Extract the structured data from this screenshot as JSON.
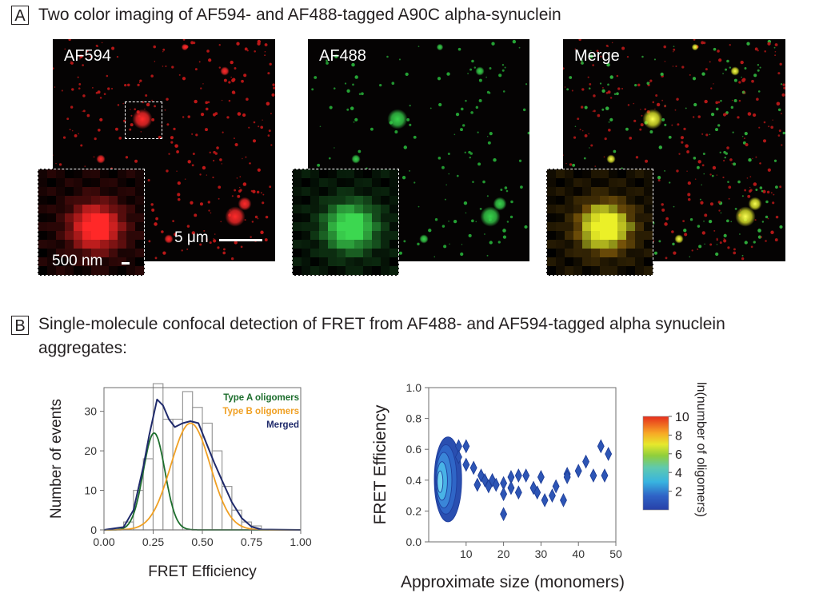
{
  "panel_a": {
    "letter": "A",
    "title": "Two color imaging of AF594- and AF488-tagged A90C alpha-synuclein",
    "images": [
      {
        "label": "AF594",
        "channel": "red"
      },
      {
        "label": "AF488",
        "channel": "green"
      },
      {
        "label": "Merge",
        "channel": "merge"
      }
    ],
    "scalebar_main": "5 μm",
    "scalebar_inset": "500 nm"
  },
  "panel_b": {
    "letter": "B",
    "title_line1": "Single-molecule confocal detection of FRET from AF488- and AF594-tagged alpha synuclein",
    "title_line2": "aggregates:"
  },
  "chart_data": [
    {
      "type": "bar",
      "xlabel": "FRET Efficiency",
      "ylabel": "Number of events",
      "xlim": [
        0.0,
        1.0
      ],
      "ylim": [
        0,
        36
      ],
      "xticks": [
        "0.00",
        "0.25",
        "0.50",
        "0.75",
        "1.00"
      ],
      "yticks": [
        "0",
        "10",
        "20",
        "30"
      ],
      "bin_width": 0.05,
      "bin_starts": [
        0.1,
        0.15,
        0.2,
        0.25,
        0.3,
        0.35,
        0.4,
        0.45,
        0.5,
        0.55,
        0.6,
        0.65,
        0.7,
        0.75
      ],
      "values": [
        2,
        10,
        18,
        37,
        28,
        28,
        35,
        31,
        27,
        20,
        11,
        5,
        2,
        1
      ],
      "legend": [
        {
          "name": "Type A oligomers",
          "color": "#1d6e2d"
        },
        {
          "name": "Type B oligomers",
          "color": "#f0a023"
        },
        {
          "name": "Merged",
          "color": "#1f2a6b"
        }
      ],
      "fits": {
        "type_a": {
          "amplitude": 24.5,
          "mean": 0.255,
          "sigma": 0.055
        },
        "type_b": {
          "amplitude": 27,
          "mean": 0.44,
          "sigma": 0.1
        },
        "merged": [
          [
            0.0,
            0
          ],
          [
            0.1,
            0.7
          ],
          [
            0.15,
            5
          ],
          [
            0.2,
            16
          ],
          [
            0.23,
            24
          ],
          [
            0.27,
            33
          ],
          [
            0.3,
            31.5
          ],
          [
            0.33,
            28
          ],
          [
            0.36,
            26
          ],
          [
            0.4,
            27
          ],
          [
            0.44,
            27.5
          ],
          [
            0.48,
            27
          ],
          [
            0.52,
            22
          ],
          [
            0.56,
            17
          ],
          [
            0.6,
            12.5
          ],
          [
            0.65,
            7
          ],
          [
            0.7,
            3
          ],
          [
            0.75,
            0.8
          ],
          [
            0.8,
            0.1
          ],
          [
            1.0,
            0
          ]
        ]
      }
    },
    {
      "type": "heatmap",
      "xlabel": "Approximate size (monomers)",
      "ylabel": "FRET Efficiency",
      "xlim": [
        0,
        50
      ],
      "ylim": [
        0.0,
        1.0
      ],
      "xticks": [
        "10",
        "20",
        "30",
        "40",
        "50"
      ],
      "yticks": [
        "0.0",
        "0.2",
        "0.4",
        "0.6",
        "0.8",
        "1.0"
      ],
      "colorbar": {
        "label": "ln(number of oligomers)",
        "ticks": [
          "2",
          "4",
          "6",
          "8",
          "10"
        ],
        "range": [
          0,
          10
        ]
      },
      "points": [
        [
          8,
          0.62
        ],
        [
          10,
          0.62
        ],
        [
          8,
          0.55
        ],
        [
          10,
          0.5
        ],
        [
          12,
          0.48
        ],
        [
          13,
          0.37
        ],
        [
          14,
          0.43
        ],
        [
          15,
          0.4
        ],
        [
          16,
          0.36
        ],
        [
          17,
          0.4
        ],
        [
          18,
          0.37
        ],
        [
          20,
          0.38
        ],
        [
          20,
          0.31
        ],
        [
          20,
          0.18
        ],
        [
          22,
          0.42
        ],
        [
          22,
          0.35
        ],
        [
          24,
          0.43
        ],
        [
          24,
          0.32
        ],
        [
          26,
          0.43
        ],
        [
          28,
          0.35
        ],
        [
          29,
          0.32
        ],
        [
          30,
          0.42
        ],
        [
          31,
          0.27
        ],
        [
          33,
          0.3
        ],
        [
          34,
          0.36
        ],
        [
          36,
          0.27
        ],
        [
          37,
          0.44
        ],
        [
          37,
          0.42
        ],
        [
          40,
          0.46
        ],
        [
          42,
          0.52
        ],
        [
          44,
          0.43
        ],
        [
          46,
          0.62
        ],
        [
          47,
          0.43
        ],
        [
          48,
          0.57
        ]
      ]
    }
  ]
}
